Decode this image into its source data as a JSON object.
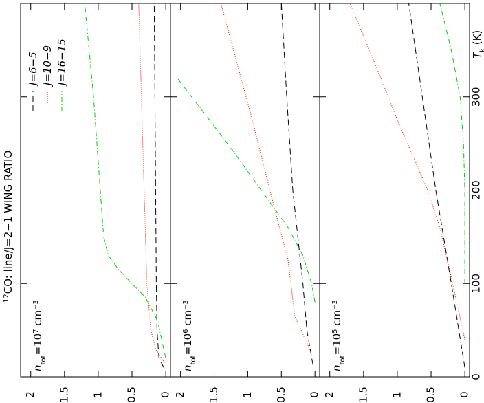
{
  "figure": {
    "title_sup": "12",
    "title": "CO: line/J=2−1 WING RATIO",
    "x_label": "T",
    "x_label_sub": "k",
    "x_label_unit": " (K)"
  },
  "chart_data": [
    {
      "type": "line",
      "label": {
        "n": "n",
        "sub": "tot",
        "mid": "=10",
        "sup": "7",
        "unit": " cm",
        "unit_sup": "−3"
      },
      "xlim": [
        0,
        400
      ],
      "xticks": [
        0,
        100,
        200,
        300
      ],
      "ylim": [
        -0.07,
        2.15
      ],
      "yticks": [
        0,
        0.5,
        1,
        1.5,
        2
      ],
      "legend": "upper left",
      "series": [
        {
          "name": "J=6−5",
          "color": "#000000",
          "linestyle": "dashed",
          "x": [
            10,
            20,
            50,
            100,
            200,
            300,
            400
          ],
          "values": [
            0.03,
            0.1,
            0.13,
            0.14,
            0.15,
            0.16,
            0.17
          ]
        },
        {
          "name": "J=10−9",
          "color": "#ff0000",
          "linestyle": "dotted",
          "x": [
            15,
            30,
            50,
            100,
            200,
            300,
            400
          ],
          "values": [
            0.02,
            0.15,
            0.22,
            0.28,
            0.32,
            0.36,
            0.4
          ]
        },
        {
          "name": "J=16−15",
          "color": "#00cc00",
          "linestyle": "dashdot",
          "x": [
            20,
            60,
            85,
            100,
            115,
            130,
            150,
            200,
            300,
            400
          ],
          "values": [
            0,
            0.12,
            0.3,
            0.5,
            0.7,
            0.85,
            0.92,
            0.97,
            1.07,
            1.2
          ]
        }
      ]
    },
    {
      "type": "line",
      "label": {
        "n": "n",
        "sub": "tot",
        "mid": "=10",
        "sup": "6",
        "unit": " cm",
        "unit_sup": "−3"
      },
      "xlim": [
        0,
        400
      ],
      "xticks": [
        0,
        100,
        200,
        300
      ],
      "ylim": [
        -0.07,
        2.15
      ],
      "yticks": [
        0,
        0.5,
        1,
        1.5,
        2
      ],
      "series": [
        {
          "name": "J=6−5",
          "color": "#000000",
          "linestyle": "dashed",
          "x": [
            13,
            50,
            100,
            200,
            300,
            400
          ],
          "values": [
            0.03,
            0.12,
            0.18,
            0.33,
            0.42,
            0.5
          ]
        },
        {
          "name": "J=10−9",
          "color": "#ff0000",
          "linestyle": "dotted",
          "x": [
            25,
            65,
            125,
            180,
            280,
            400
          ],
          "values": [
            0.05,
            0.3,
            0.4,
            0.6,
            0.95,
            1.4
          ]
        },
        {
          "name": "J=16−15",
          "color": "#00cc00",
          "linestyle": "dashdot",
          "x": [
            80,
            100,
            130,
            160,
            200,
            240,
            280,
            320
          ],
          "values": [
            0,
            0.05,
            0.18,
            0.4,
            0.8,
            1.2,
            1.62,
            2.05
          ]
        }
      ]
    },
    {
      "type": "line",
      "label": {
        "n": "n",
        "sub": "tot",
        "mid": "=10",
        "sup": "5",
        "unit": " cm",
        "unit_sup": "−3"
      },
      "xlim": [
        0,
        400
      ],
      "xticks": [
        0,
        100,
        200,
        300
      ],
      "ylim": [
        -0.07,
        2.15
      ],
      "yticks": [
        0,
        0.5,
        1,
        1.5,
        2
      ],
      "series": [
        {
          "name": "J=6−5",
          "color": "#000000",
          "linestyle": "dashed",
          "x": [
            10,
            100,
            200,
            300,
            400
          ],
          "values": [
            0,
            0.2,
            0.43,
            0.63,
            0.83
          ]
        },
        {
          "name": "J=10−9",
          "color": "#ff0000",
          "linestyle": "dotted",
          "x": [
            40,
            90,
            160,
            200,
            270,
            330,
            400
          ],
          "values": [
            0,
            0.15,
            0.37,
            0.55,
            0.97,
            1.3,
            1.7
          ]
        },
        {
          "name": "J=16−15",
          "color": "#00cc00",
          "linestyle": "dashdot",
          "x": [
            100,
            200,
            250,
            300,
            350,
            400
          ],
          "values": [
            0,
            0,
            0.02,
            0.07,
            0.2,
            0.37
          ]
        }
      ]
    }
  ]
}
